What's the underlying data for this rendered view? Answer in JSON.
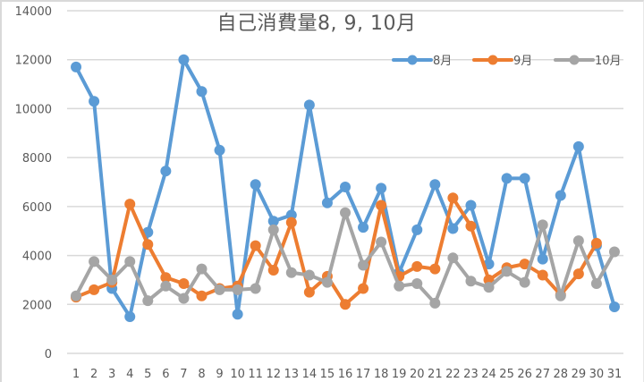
{
  "chart_data": {
    "type": "line",
    "title": "自己消費量8, 9, 10月",
    "xlabel": "",
    "ylabel": "",
    "ylim": [
      0,
      14000
    ],
    "yticks": [
      0,
      2000,
      4000,
      6000,
      8000,
      10000,
      12000,
      14000
    ],
    "grid": true,
    "legend_position": "top-right",
    "categories": [
      1,
      2,
      3,
      4,
      5,
      6,
      7,
      8,
      9,
      10,
      11,
      12,
      13,
      14,
      15,
      16,
      17,
      18,
      19,
      20,
      21,
      22,
      23,
      24,
      25,
      26,
      27,
      28,
      29,
      30,
      31
    ],
    "series": [
      {
        "name": "8月",
        "color": "#5b9bd5",
        "values": [
          11700,
          10300,
          2650,
          1500,
          4950,
          7450,
          12000,
          10700,
          8300,
          1600,
          6900,
          5400,
          5650,
          10150,
          6150,
          6800,
          5150,
          6750,
          3300,
          5050,
          6900,
          5100,
          6050,
          3650,
          7150,
          7150,
          3850,
          6450,
          8450,
          4400,
          1900
        ]
      },
      {
        "name": "9月",
        "color": "#ed7d31",
        "values": [
          2300,
          2600,
          2900,
          6100,
          4450,
          3100,
          2850,
          2350,
          2650,
          2750,
          4400,
          3400,
          5350,
          2500,
          3150,
          2000,
          2650,
          6050,
          3150,
          3550,
          3450,
          6350,
          5200,
          3000,
          3500,
          3650,
          3200,
          2400,
          3250,
          4500
        ]
      },
      {
        "name": "10月",
        "color": "#a5a5a5",
        "values": [
          2350,
          3750,
          3000,
          3750,
          2150,
          2750,
          2250,
          3450,
          2600,
          2600,
          2650,
          5050,
          3300,
          3200,
          2900,
          5750,
          3600,
          4550,
          2750,
          2850,
          2050,
          3900,
          2950,
          2700,
          3350,
          2900,
          5250,
          2350,
          4600,
          2850,
          4150
        ]
      }
    ]
  },
  "colors": {
    "gridline": "#d9d9d9",
    "axis_text": "#595959",
    "title_text": "#595959"
  }
}
